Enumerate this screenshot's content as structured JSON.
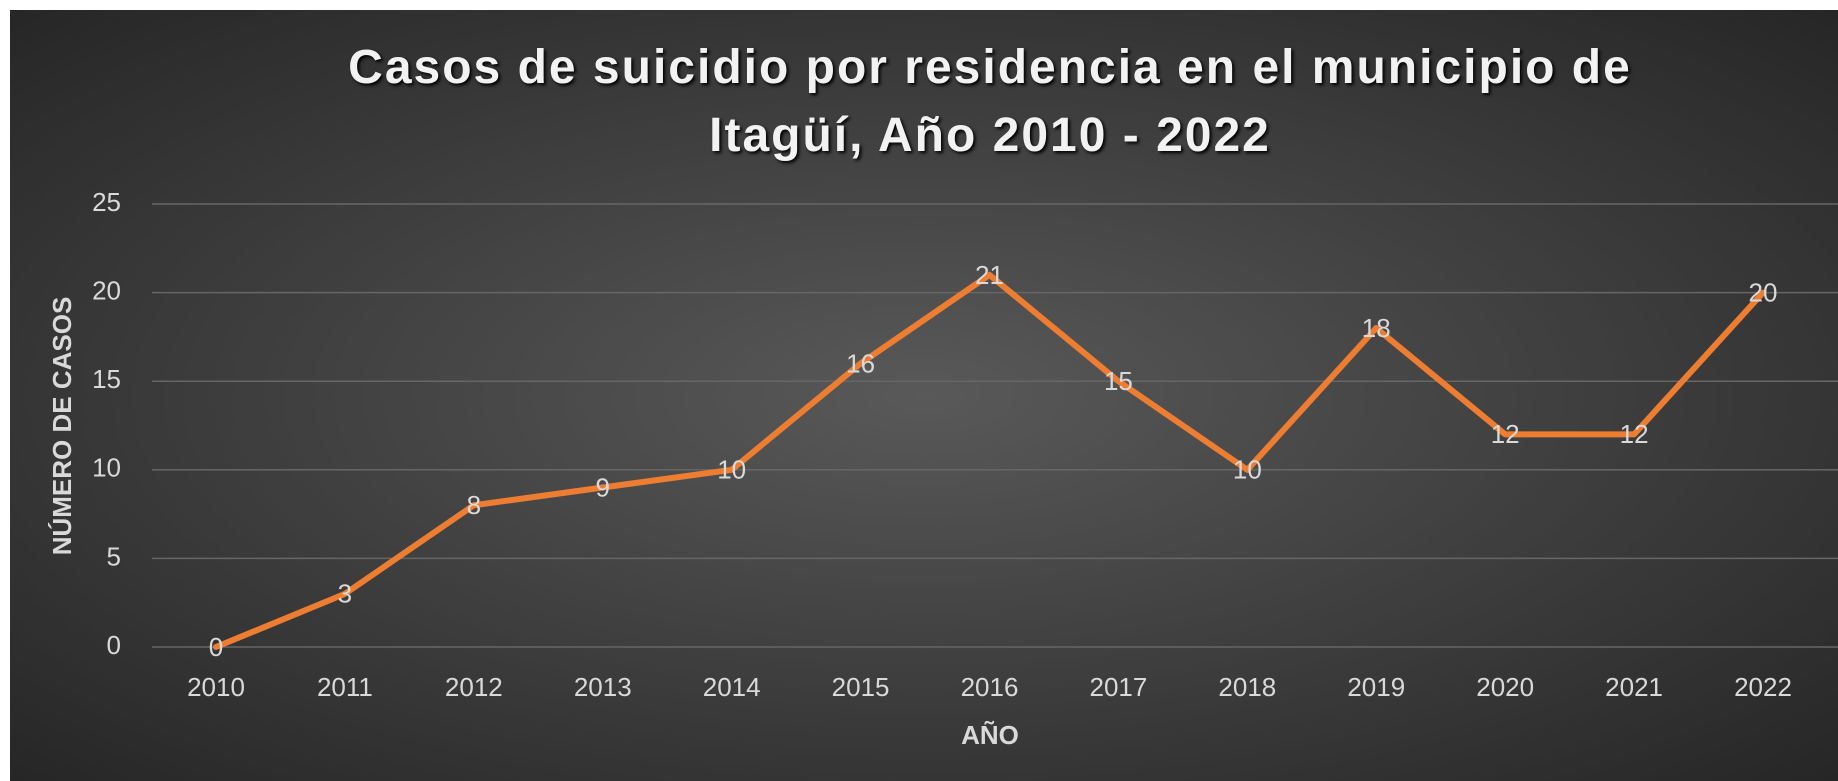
{
  "chart_data": {
    "type": "line",
    "title": "Casos de suicidio por residencia en el municipio de Itagüí, Año 2010 - 2022",
    "x_label": "AÑO",
    "y_label": "NÚMERO DE CASOS",
    "categories": [
      "2010",
      "2011",
      "2012",
      "2013",
      "2014",
      "2015",
      "2016",
      "2017",
      "2018",
      "2019",
      "2020",
      "2021",
      "2022"
    ],
    "series": [
      {
        "name": "Casos",
        "color": "#ED7D31",
        "values": [
          0,
          3,
          8,
          9,
          10,
          16,
          21,
          15,
          10,
          18,
          12,
          12,
          20
        ]
      }
    ],
    "ylim": [
      0,
      25
    ],
    "yticks": [
      0,
      5,
      10,
      15,
      20,
      25
    ],
    "grid": true
  }
}
